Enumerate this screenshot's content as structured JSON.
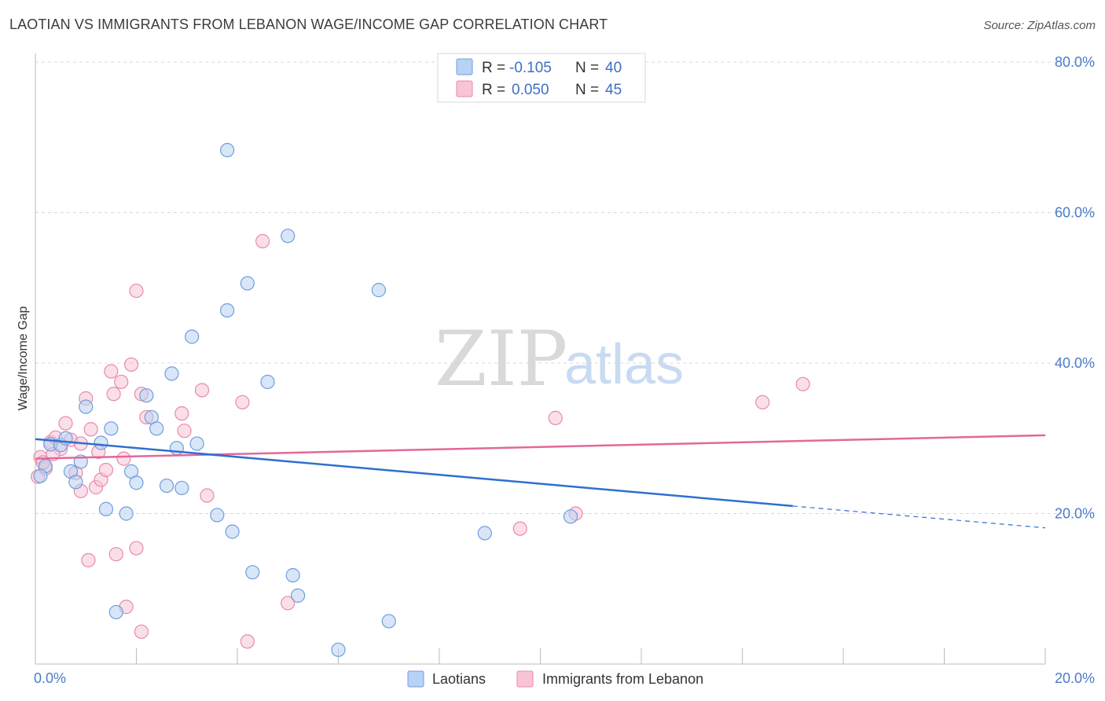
{
  "header": {
    "title": "LAOTIAN VS IMMIGRANTS FROM LEBANON WAGE/INCOME GAP CORRELATION CHART",
    "source": "Source: ZipAtlas.com"
  },
  "watermark": {
    "zip": "ZIP",
    "atlas": "atlas"
  },
  "colors": {
    "blue_fill": "#b8d2f3",
    "blue_stroke": "#6f9edc",
    "blue_line": "#2f6fd0",
    "pink_fill": "#f8c5d5",
    "pink_stroke": "#e98aa9",
    "pink_line": "#e2689a",
    "grid": "#d8d8d8",
    "tick_text": "#4a7cc9"
  },
  "legend": {
    "rows": [
      {
        "r_label": "R =",
        "r_value": "-0.105",
        "n_label": "N =",
        "n_value": "40"
      },
      {
        "r_label": "R =",
        "r_value": "0.050",
        "n_label": "N =",
        "n_value": "45"
      }
    ]
  },
  "chart_data": {
    "type": "scatter",
    "title": "LAOTIAN VS IMMIGRANTS FROM LEBANON WAGE/INCOME GAP CORRELATION CHART",
    "xlabel": "",
    "ylabel": "Wage/Income Gap",
    "xlim": [
      0,
      20
    ],
    "ylim": [
      0,
      80
    ],
    "x_ticks": [
      "0.0%",
      "20.0%"
    ],
    "y_ticks": [
      "20.0%",
      "40.0%",
      "60.0%",
      "80.0%"
    ],
    "y_tick_values": [
      20,
      40,
      60,
      80
    ],
    "grid": "horizontal dashed",
    "legend_position": "bottom-center",
    "series": [
      {
        "name": "Laotians",
        "color": "#6f9edc",
        "r": -0.105,
        "n": 40,
        "trend": {
          "x": [
            0,
            15
          ],
          "y": [
            29.9,
            21.0
          ]
        },
        "trend_extension": {
          "x": [
            15,
            20
          ],
          "y": [
            21.0,
            18.1
          ]
        },
        "points": [
          [
            0.2,
            26.3
          ],
          [
            0.3,
            29.2
          ],
          [
            0.5,
            29.1
          ],
          [
            0.6,
            30.0
          ],
          [
            0.7,
            25.6
          ],
          [
            0.8,
            24.2
          ],
          [
            0.9,
            26.9
          ],
          [
            1.0,
            34.2
          ],
          [
            1.3,
            29.4
          ],
          [
            1.5,
            31.3
          ],
          [
            1.4,
            20.6
          ],
          [
            1.6,
            6.9
          ],
          [
            1.8,
            20.0
          ],
          [
            1.9,
            25.6
          ],
          [
            2.0,
            24.1
          ],
          [
            2.2,
            35.7
          ],
          [
            2.3,
            32.8
          ],
          [
            2.4,
            31.3
          ],
          [
            2.6,
            23.7
          ],
          [
            2.7,
            38.6
          ],
          [
            2.8,
            28.7
          ],
          [
            2.9,
            23.4
          ],
          [
            3.1,
            43.5
          ],
          [
            3.2,
            29.3
          ],
          [
            3.6,
            19.8
          ],
          [
            3.8,
            47.0
          ],
          [
            3.8,
            68.3
          ],
          [
            3.9,
            17.6
          ],
          [
            4.2,
            50.6
          ],
          [
            4.3,
            12.2
          ],
          [
            4.6,
            37.5
          ],
          [
            5.0,
            56.9
          ],
          [
            5.1,
            11.8
          ],
          [
            5.2,
            9.1
          ],
          [
            6.0,
            1.9
          ],
          [
            6.8,
            49.7
          ],
          [
            7.0,
            5.7
          ],
          [
            8.9,
            17.4
          ],
          [
            10.6,
            19.6
          ],
          [
            0.1,
            25.0
          ]
        ]
      },
      {
        "name": "Immigrants from Lebanon",
        "color": "#e98aa9",
        "r": 0.05,
        "n": 45,
        "trend": {
          "x": [
            0,
            20
          ],
          "y": [
            27.3,
            30.4
          ]
        },
        "points": [
          [
            0.05,
            24.9
          ],
          [
            0.1,
            27.5
          ],
          [
            0.2,
            26.0
          ],
          [
            0.3,
            29.5
          ],
          [
            0.4,
            30.1
          ],
          [
            0.5,
            28.6
          ],
          [
            0.6,
            32.0
          ],
          [
            0.7,
            29.8
          ],
          [
            0.8,
            25.4
          ],
          [
            0.9,
            29.3
          ],
          [
            0.9,
            23.0
          ],
          [
            1.0,
            35.3
          ],
          [
            1.05,
            13.8
          ],
          [
            1.1,
            31.2
          ],
          [
            1.2,
            23.5
          ],
          [
            1.25,
            28.2
          ],
          [
            1.3,
            24.5
          ],
          [
            1.4,
            25.8
          ],
          [
            1.5,
            38.9
          ],
          [
            1.55,
            35.9
          ],
          [
            1.6,
            14.6
          ],
          [
            1.7,
            37.5
          ],
          [
            1.75,
            27.3
          ],
          [
            1.8,
            7.6
          ],
          [
            1.9,
            39.8
          ],
          [
            2.0,
            15.4
          ],
          [
            2.0,
            49.6
          ],
          [
            2.1,
            35.9
          ],
          [
            2.1,
            4.3
          ],
          [
            2.2,
            32.8
          ],
          [
            2.9,
            33.3
          ],
          [
            2.95,
            31.0
          ],
          [
            3.3,
            36.4
          ],
          [
            3.4,
            22.4
          ],
          [
            4.1,
            34.8
          ],
          [
            4.2,
            3.0
          ],
          [
            4.5,
            56.2
          ],
          [
            5.0,
            8.1
          ],
          [
            9.6,
            18.0
          ],
          [
            10.3,
            32.7
          ],
          [
            10.7,
            20.0
          ],
          [
            14.4,
            34.8
          ],
          [
            15.2,
            37.2
          ],
          [
            0.15,
            26.8
          ],
          [
            0.35,
            27.9
          ]
        ]
      }
    ]
  }
}
